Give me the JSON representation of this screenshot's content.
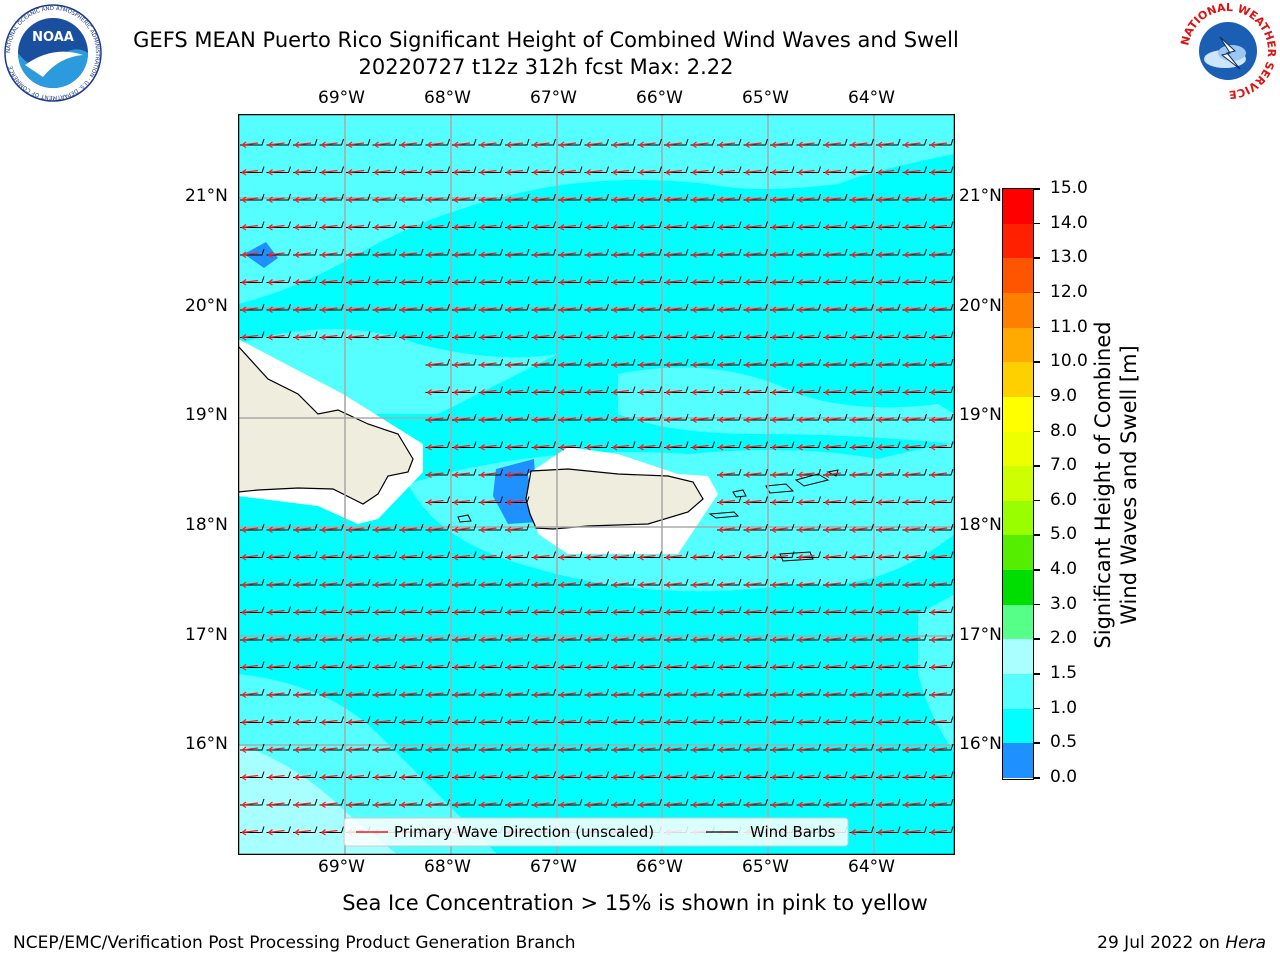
{
  "header": {
    "title_line1": "GEFS MEAN Puerto Rico Significant Height of Combined Wind Waves and Swell",
    "title_line2": "20220727 t12z 312h fcst   Max: 2.22"
  },
  "logos": {
    "noaa_label": "NOAA",
    "noaa_ring_text": "NATIONAL OCEANIC AND ATMOSPHERIC ADMINISTRATION · U.S. DEPARTMENT OF COMMERCE",
    "nws_ring_text": "NATIONAL WEATHER SERVICE"
  },
  "map": {
    "lon_labels": [
      "69°W",
      "68°W",
      "67°W",
      "66°W",
      "65°W",
      "64°W"
    ],
    "lat_labels": [
      "21°N",
      "20°N",
      "19°N",
      "18°N",
      "17°N",
      "16°N"
    ],
    "legend": {
      "wave_direction": "Primary Wave Direction (unscaled)",
      "wind_barbs": "Wind Barbs"
    },
    "colors": {
      "ocean_main": "#00ffff",
      "ocean_higher": "#55ffff",
      "ocean_high": "#a8ffff",
      "ocean_low": "#1e90ff",
      "ocean_lowest": "#0055ee",
      "land": "#efedde",
      "wave_arrow": "#ff1a1a",
      "barb": "#000000"
    }
  },
  "colorbar": {
    "label_line1": "Significant Height of Combined",
    "label_line2": "Wind Waves and Swell [m]",
    "ticks": [
      "15.0",
      "14.0",
      "13.0",
      "12.0",
      "11.0",
      "10.0",
      "9.0",
      "8.0",
      "7.0",
      "6.0",
      "5.0",
      "4.0",
      "3.0",
      "2.0",
      "1.5",
      "1.0",
      "0.5",
      "0.0"
    ],
    "colors": [
      "#ff0000",
      "#ff2000",
      "#ff5500",
      "#ff8000",
      "#ffaa00",
      "#ffd000",
      "#ffff00",
      "#eeff00",
      "#ccff00",
      "#99ff00",
      "#55ee00",
      "#00dd00",
      "#55ff88",
      "#aaffff",
      "#55ffff",
      "#00ffff",
      "#1e90ff",
      "#0000ff"
    ]
  },
  "caption": "Sea Ice Concentration > 15% is shown in pink to yellow",
  "footer": {
    "left": "NCEP/EMC/Verification Post Processing Product Generation Branch",
    "right_prefix": "29 Jul 2022 on ",
    "right_host": "Hera"
  }
}
